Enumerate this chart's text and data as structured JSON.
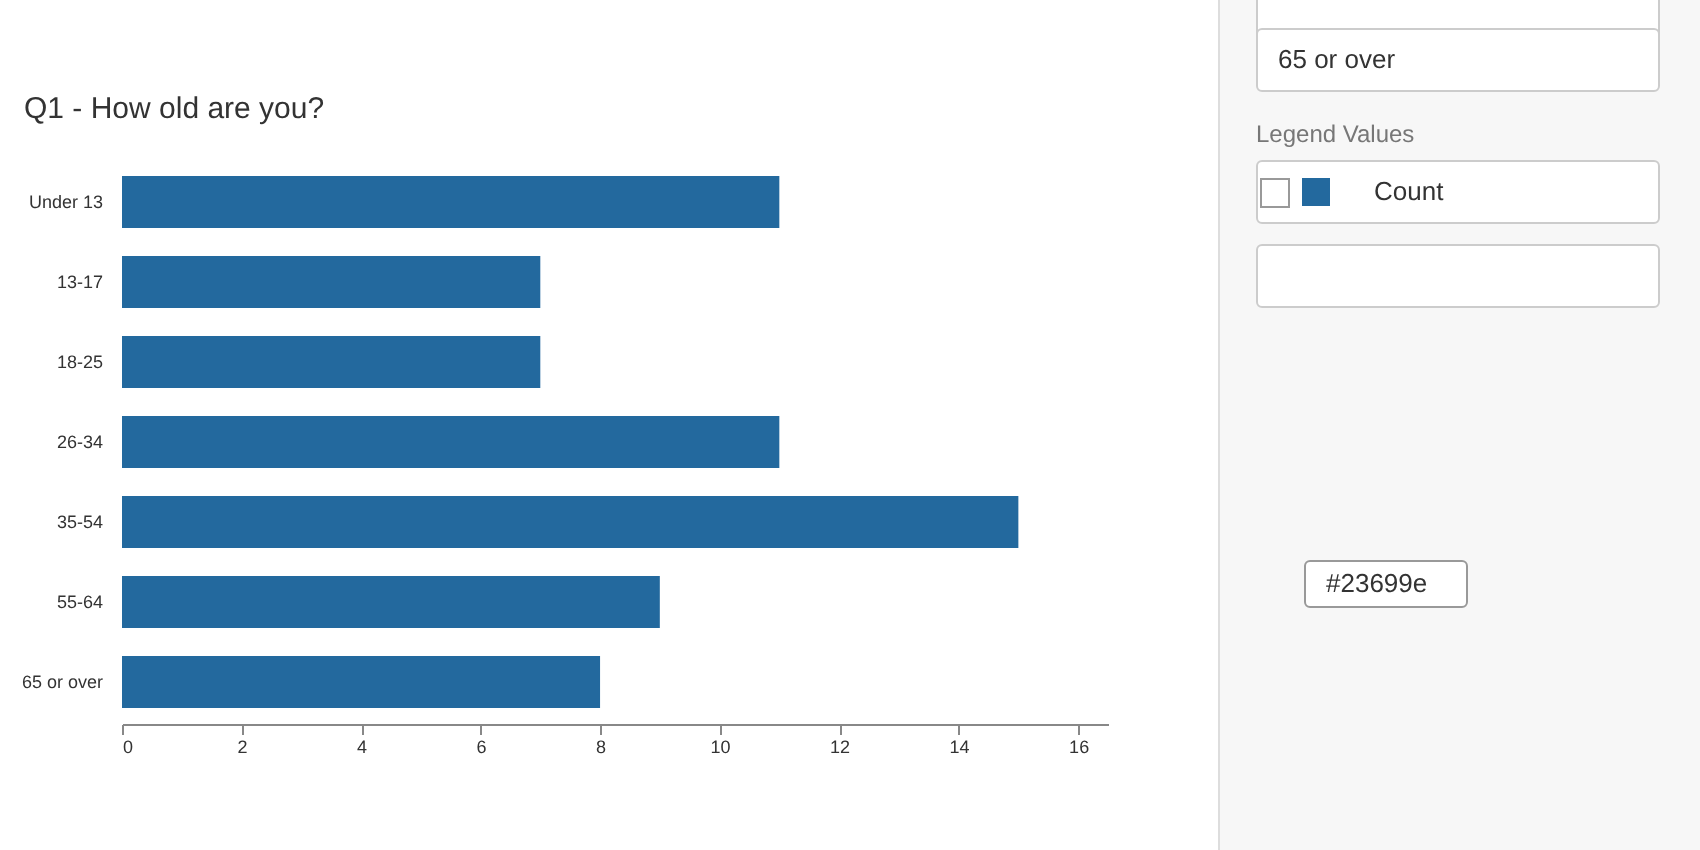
{
  "chart_data": {
    "type": "bar",
    "orientation": "horizontal",
    "title": "Q1 - How old are you?",
    "categories": [
      "Under 13",
      "13-17",
      "18-25",
      "26-34",
      "35-54",
      "55-64",
      "65 or over"
    ],
    "values": [
      11,
      7,
      7,
      11,
      15,
      9,
      8
    ],
    "color": "#23699e",
    "xlim": [
      0,
      16.5
    ],
    "xticks": [
      0,
      2,
      4,
      6,
      8,
      10,
      12,
      14,
      16
    ],
    "grid": false,
    "annotations": [
      "65 or over",
      "Legend Values",
      "Count",
      "#23699e"
    ]
  }
}
